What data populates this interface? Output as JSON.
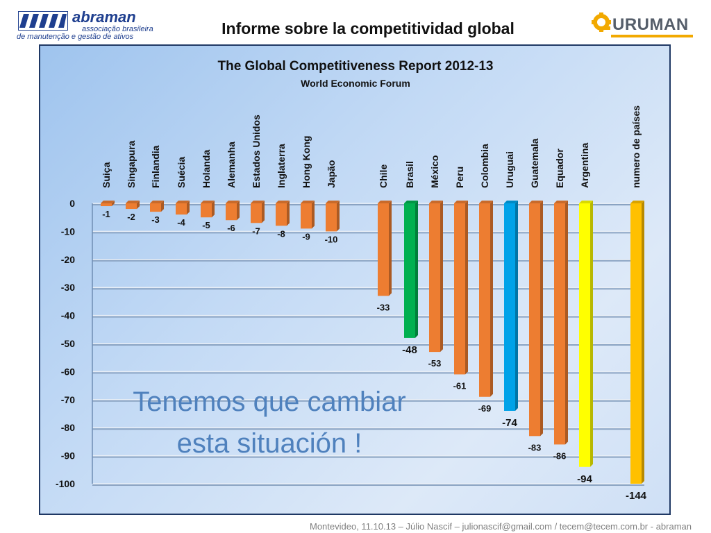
{
  "header": {
    "left_logo": {
      "name": "abraman",
      "line1": "associação brasileira",
      "line2": "de manutenção e gestão de ativos"
    },
    "title": "Informe sobre la competitividad global",
    "right_logo": {
      "name": "URUMAN"
    }
  },
  "chart_data": {
    "type": "bar",
    "title": "The Global Competitiveness Report 2012-13",
    "subtitle": "World Economic Forum",
    "categories": [
      "Suiça",
      "Singapura",
      "Finlandia",
      "Suécia",
      "Holanda",
      "Alemanha",
      "Estados Unidos",
      "Inglaterra",
      "Hong Kong",
      "Japão",
      "Chile",
      "Brasil",
      "México",
      "Peru",
      "Colombia",
      "Uruguai",
      "Guatemala",
      "Equador",
      "Argentina",
      "numero de países"
    ],
    "values": [
      -1,
      -2,
      -3,
      -4,
      -5,
      -6,
      -7,
      -8,
      -9,
      -10,
      -33,
      -48,
      -53,
      -61,
      -69,
      -74,
      -83,
      -86,
      -94,
      -144
    ],
    "value_labels": [
      "-1",
      "-2",
      "-3",
      "-4",
      "-5",
      "-6",
      "-7",
      "-8",
      "-9",
      "-10",
      "-33",
      "-48",
      "-53",
      "-61",
      "-69",
      "-74",
      "-83",
      "-86",
      "-94",
      "-144"
    ],
    "bar_colors": [
      "#ed7d31",
      "#ed7d31",
      "#ed7d31",
      "#ed7d31",
      "#ed7d31",
      "#ed7d31",
      "#ed7d31",
      "#ed7d31",
      "#ed7d31",
      "#ed7d31",
      "#ed7d31",
      "#00b050",
      "#ed7d31",
      "#ed7d31",
      "#ed7d31",
      "#00a2e8",
      "#ed7d31",
      "#ed7d31",
      "#ffff00",
      "#ffc000"
    ],
    "yticks": [
      "0",
      "-10",
      "-20",
      "-30",
      "-40",
      "-50",
      "-60",
      "-70",
      "-80",
      "-90",
      "-100"
    ],
    "ylim": [
      -100,
      0
    ],
    "xlabel": "",
    "ylabel": "",
    "grid": true,
    "annotation": [
      "Tenemos que cambiar",
      "esta situación !"
    ]
  },
  "footer": "Montevideo, 11.10.13 – Júlio Nascif – julionascif@gmail.com / tecem@tecem.com.br - abraman"
}
